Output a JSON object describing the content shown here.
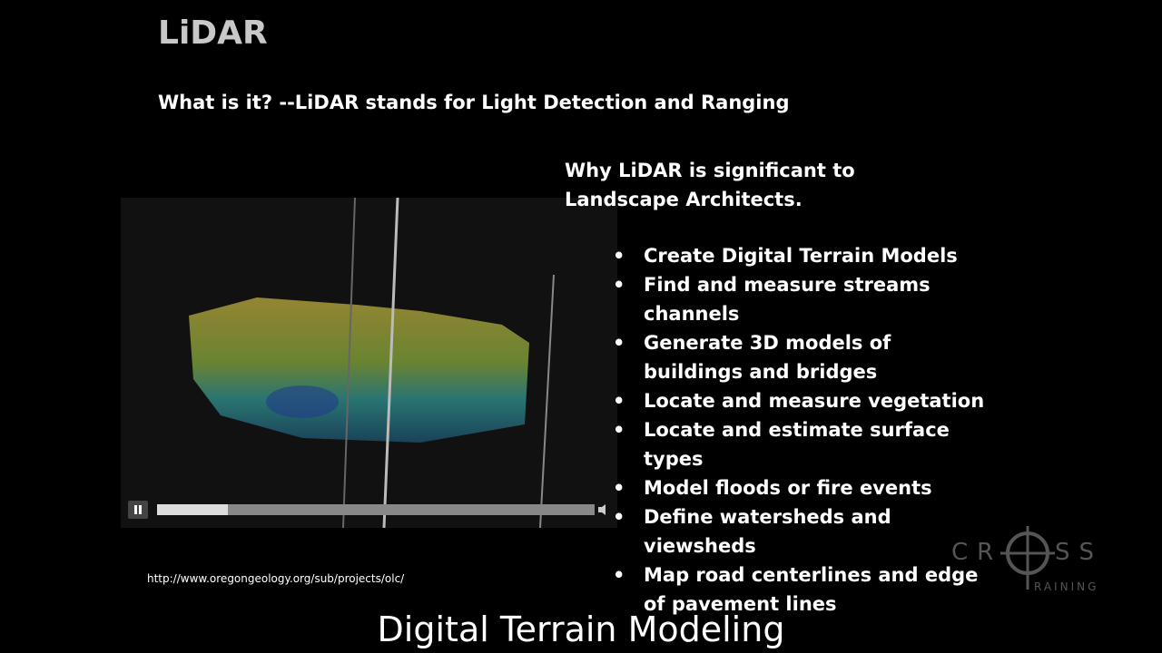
{
  "title": "LiDAR",
  "subtitle": "What is it?  --LiDAR stands for Light Detection and Ranging",
  "heading": "Why LiDAR is significant to Landscape Architects.",
  "bullets": [
    "Create Digital Terrain Models",
    "Find and measure streams channels",
    "Generate 3D models of buildings and bridges",
    "Locate and measure vegetation",
    "Locate and estimate surface types",
    "Model floods or fire events",
    "Define watersheds and viewsheds",
    "Map road centerlines and edge of pavement lines"
  ],
  "source_url": "http://www.oregongeology.org/sub/projects/olc/",
  "caption": "Digital Terrain Modeling",
  "logo": {
    "left": "CR",
    "right": "SS",
    "sub": "RAINING"
  }
}
